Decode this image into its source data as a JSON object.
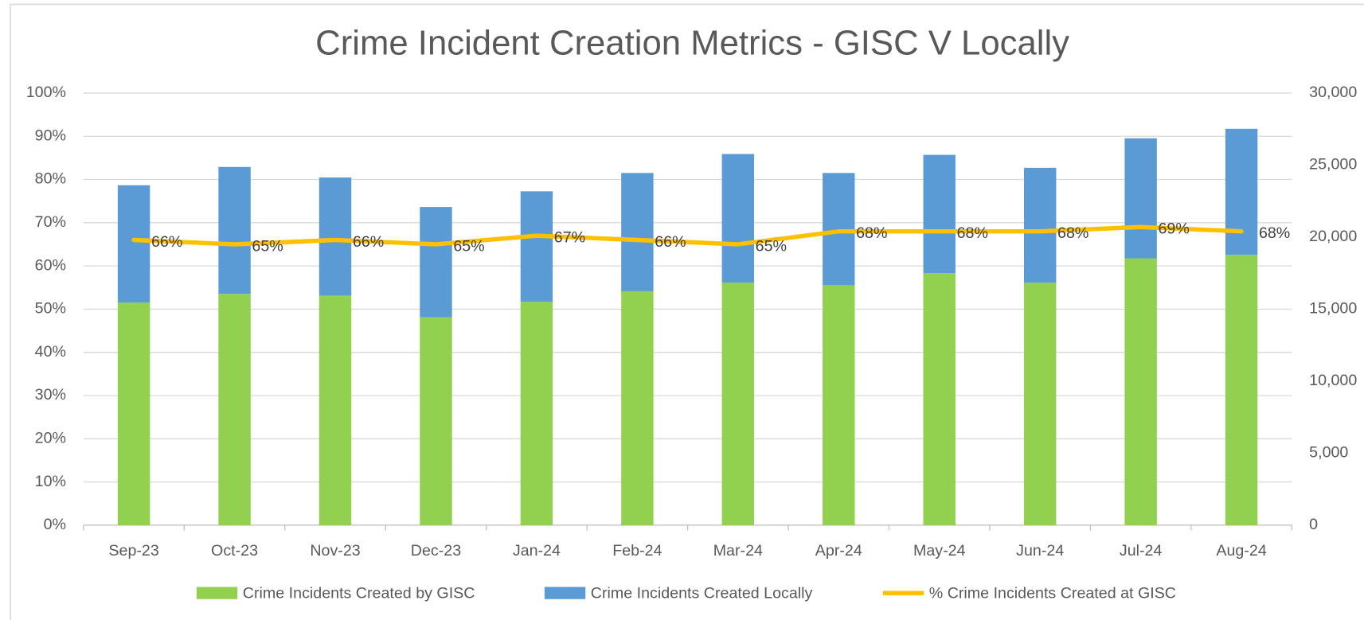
{
  "chart_data": {
    "type": "bar",
    "title": "Crime Incident Creation Metrics - GISC V Locally",
    "categories": [
      "Sep-23",
      "Oct-23",
      "Nov-23",
      "Dec-23",
      "Jan-24",
      "Feb-24",
      "Mar-24",
      "Apr-24",
      "May-24",
      "Jun-24",
      "Jul-24",
      "Aug-24"
    ],
    "stacked": true,
    "grid": true,
    "legend": "bottom",
    "ylim": [
      0,
      100
    ],
    "yticks": [
      {
        "value": 0,
        "label": "0%"
      },
      {
        "value": 10,
        "label": "10%"
      },
      {
        "value": 20,
        "label": "20%"
      },
      {
        "value": 30,
        "label": "30%"
      },
      {
        "value": 40,
        "label": "40%"
      },
      {
        "value": 50,
        "label": "50%"
      },
      {
        "value": 60,
        "label": "60%"
      },
      {
        "value": 70,
        "label": "70%"
      },
      {
        "value": 80,
        "label": "80%"
      },
      {
        "value": 90,
        "label": "90%"
      },
      {
        "value": 100,
        "label": "100%"
      }
    ],
    "y2lim": [
      0,
      30000
    ],
    "y2ticks": [
      0,
      {
        "value": 5000,
        "label": "5,000"
      },
      {
        "value": 10000,
        "label": "10,000"
      },
      {
        "value": 15000,
        "label": "15,000"
      },
      {
        "value": 20000,
        "label": "20,000"
      },
      {
        "value": 25000,
        "label": "25,000"
      },
      {
        "value": 30000,
        "label": "30,000"
      }
    ],
    "series": [
      {
        "name": "Crime Incidents Created by GISC",
        "type": "bar",
        "axis": "y2",
        "color": "#92d050",
        "values": [
          15450,
          16060,
          15940,
          14430,
          15510,
          16240,
          16840,
          16660,
          17500,
          16840,
          18530,
          18770
        ]
      },
      {
        "name": "Crime Incidents Created Locally",
        "type": "bar",
        "axis": "y2",
        "color": "#5b9bd5",
        "values": [
          8150,
          8810,
          8200,
          7660,
          7670,
          8210,
          8930,
          7790,
          8210,
          7970,
          8330,
          8750
        ]
      },
      {
        "name": "% Crime Incidents Created at GISC",
        "type": "line",
        "axis": "y",
        "color": "#ffc000",
        "values": [
          66,
          65,
          66,
          65,
          67,
          66,
          65,
          68,
          68,
          68,
          69,
          68
        ],
        "value_labels": [
          "66%",
          "65%",
          "66%",
          "65%",
          "67%",
          "66%",
          "65%",
          "68%",
          "68%",
          "68%",
          "69%",
          "68%"
        ]
      }
    ]
  }
}
